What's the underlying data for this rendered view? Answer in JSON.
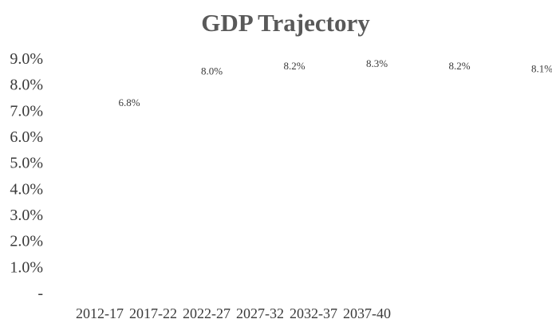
{
  "chart_data": {
    "type": "line",
    "title": "GDP Trajectory",
    "xlabel": "",
    "ylabel": "",
    "categories": [
      "2012-17",
      "2017-22",
      "2022-27",
      "2027-32",
      "2032-37",
      "2037-40"
    ],
    "series": [
      {
        "values": [
          6.8,
          8.0,
          8.2,
          8.3,
          8.2,
          8.1
        ],
        "data_labels": [
          "6.8%",
          "8.0%",
          "8.2%",
          "8.3%",
          "8.2%",
          "8.1%"
        ],
        "line_visible": false
      }
    ],
    "ylim": [
      0,
      9
    ],
    "y_ticks": [
      0,
      1,
      2,
      3,
      4,
      5,
      6,
      7,
      8,
      9
    ],
    "y_tick_labels": [
      "-",
      "1.0%",
      "2.0%",
      "3.0%",
      "4.0%",
      "5.0%",
      "6.0%",
      "7.0%",
      "8.0%",
      "9.0%"
    ],
    "grid": false,
    "legend": "none",
    "colors": {
      "title": "#595959",
      "text": "#3a3a3a",
      "background": "#ffffff"
    }
  }
}
